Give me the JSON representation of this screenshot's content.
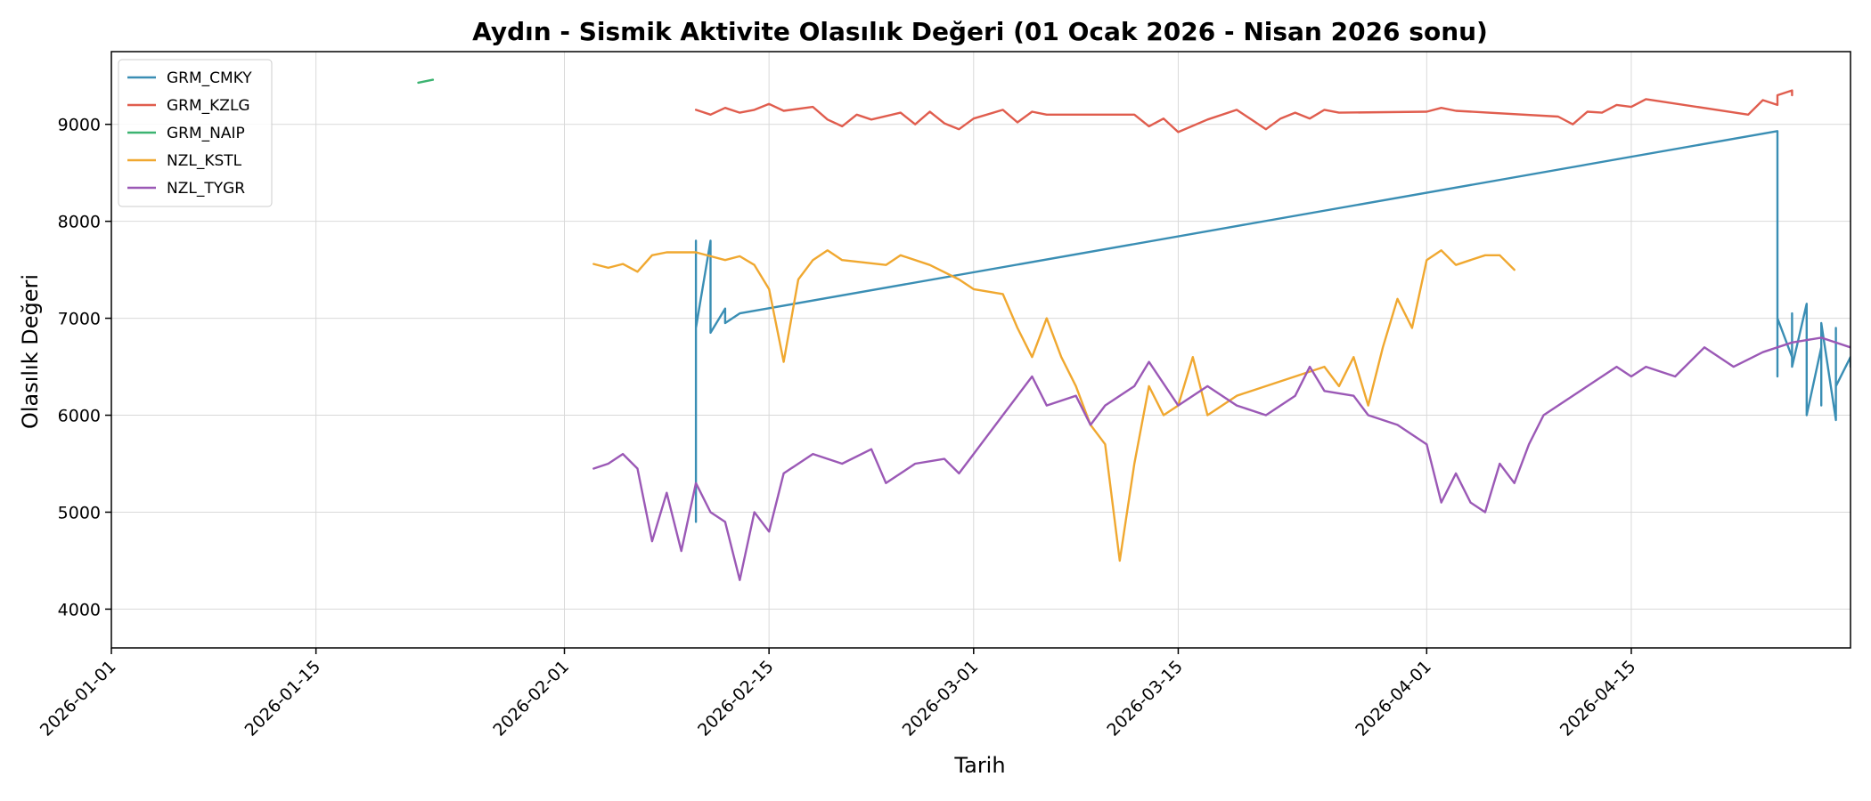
{
  "chart_data": {
    "type": "line",
    "title": "Aydın - Sismik Aktivite Olasılık Değeri (01 Ocak 2026 - Nisan 2026 sonu)",
    "xlabel": "Tarih",
    "ylabel": "Olasılık Değeri",
    "x_type": "date",
    "xlim": [
      "2026-01-01",
      "2026-04-30"
    ],
    "ylim": [
      3600,
      9750
    ],
    "x_ticks": [
      "2026-01-01",
      "2026-01-15",
      "2026-02-01",
      "2026-02-15",
      "2026-03-01",
      "2026-03-15",
      "2026-04-01",
      "2026-04-15"
    ],
    "y_ticks": [
      4000,
      5000,
      6000,
      7000,
      8000,
      9000
    ],
    "grid": true,
    "legend_position": "top-left",
    "series": [
      {
        "name": "GRM_CMKY",
        "color": "#3a8eb4",
        "points": [
          [
            "2026-02-10",
            4900
          ],
          [
            "2026-02-10",
            7800
          ],
          [
            "2026-02-10",
            7000
          ],
          [
            "2026-02-10",
            6900
          ],
          [
            "2026-02-11",
            7800
          ],
          [
            "2026-02-11",
            7000
          ],
          [
            "2026-02-11",
            6850
          ],
          [
            "2026-02-12",
            7100
          ],
          [
            "2026-02-12",
            6950
          ],
          [
            "2026-02-13",
            7050
          ],
          [
            "2026-04-25",
            8930
          ],
          [
            "2026-04-25",
            6400
          ],
          [
            "2026-04-25",
            7000
          ],
          [
            "2026-04-26",
            6600
          ],
          [
            "2026-04-26",
            7050
          ],
          [
            "2026-04-26",
            6500
          ],
          [
            "2026-04-27",
            7150
          ],
          [
            "2026-04-27",
            6200
          ],
          [
            "2026-04-27",
            7100
          ],
          [
            "2026-04-27",
            6000
          ],
          [
            "2026-04-28",
            6700
          ],
          [
            "2026-04-28",
            6100
          ],
          [
            "2026-04-28",
            6950
          ],
          [
            "2026-04-29",
            5950
          ],
          [
            "2026-04-29",
            6900
          ],
          [
            "2026-04-29",
            6300
          ],
          [
            "2026-04-30",
            6600
          ],
          [
            "2026-04-30",
            6500
          ]
        ]
      },
      {
        "name": "GRM_KZLG",
        "color": "#e05d4e",
        "points": [
          [
            "2026-02-10",
            9150
          ],
          [
            "2026-02-11",
            9100
          ],
          [
            "2026-02-12",
            9170
          ],
          [
            "2026-02-13",
            9120
          ],
          [
            "2026-02-14",
            9150
          ],
          [
            "2026-02-15",
            9210
          ],
          [
            "2026-02-16",
            9140
          ],
          [
            "2026-02-18",
            9180
          ],
          [
            "2026-02-19",
            9050
          ],
          [
            "2026-02-20",
            8980
          ],
          [
            "2026-02-21",
            9100
          ],
          [
            "2026-02-22",
            9050
          ],
          [
            "2026-02-24",
            9120
          ],
          [
            "2026-02-25",
            9000
          ],
          [
            "2026-02-26",
            9130
          ],
          [
            "2026-02-27",
            9010
          ],
          [
            "2026-02-28",
            8950
          ],
          [
            "2026-03-01",
            9060
          ],
          [
            "2026-03-03",
            9150
          ],
          [
            "2026-03-04",
            9020
          ],
          [
            "2026-03-05",
            9130
          ],
          [
            "2026-03-06",
            9100
          ],
          [
            "2026-03-12",
            9100
          ],
          [
            "2026-03-13",
            8980
          ],
          [
            "2026-03-14",
            9060
          ],
          [
            "2026-03-15",
            8920
          ],
          [
            "2026-03-17",
            9050
          ],
          [
            "2026-03-19",
            9150
          ],
          [
            "2026-03-20",
            9050
          ],
          [
            "2026-03-21",
            8950
          ],
          [
            "2026-03-22",
            9060
          ],
          [
            "2026-03-23",
            9120
          ],
          [
            "2026-03-24",
            9060
          ],
          [
            "2026-03-25",
            9150
          ],
          [
            "2026-03-26",
            9120
          ],
          [
            "2026-04-01",
            9130
          ],
          [
            "2026-04-02",
            9170
          ],
          [
            "2026-04-03",
            9140
          ],
          [
            "2026-04-10",
            9080
          ],
          [
            "2026-04-11",
            9000
          ],
          [
            "2026-04-12",
            9130
          ],
          [
            "2026-04-13",
            9120
          ],
          [
            "2026-04-14",
            9200
          ],
          [
            "2026-04-15",
            9180
          ],
          [
            "2026-04-16",
            9260
          ],
          [
            "2026-04-23",
            9100
          ],
          [
            "2026-04-24",
            9250
          ],
          [
            "2026-04-25",
            9200
          ],
          [
            "2026-04-25",
            9300
          ],
          [
            "2026-04-26",
            9350
          ],
          [
            "2026-04-26",
            9300
          ]
        ]
      },
      {
        "name": "GRM_NAIP",
        "color": "#3cb371",
        "points": [
          [
            "2026-01-22",
            9430
          ],
          [
            "2026-01-23",
            9460
          ]
        ]
      },
      {
        "name": "NZL_KSTL",
        "color": "#f0a830",
        "points": [
          [
            "2026-02-03",
            7560
          ],
          [
            "2026-02-04",
            7520
          ],
          [
            "2026-02-05",
            7560
          ],
          [
            "2026-02-06",
            7480
          ],
          [
            "2026-02-07",
            7650
          ],
          [
            "2026-02-08",
            7680
          ],
          [
            "2026-02-10",
            7680
          ],
          [
            "2026-02-11",
            7640
          ],
          [
            "2026-02-12",
            7600
          ],
          [
            "2026-02-13",
            7640
          ],
          [
            "2026-02-14",
            7550
          ],
          [
            "2026-02-15",
            7300
          ],
          [
            "2026-02-16",
            6550
          ],
          [
            "2026-02-17",
            7400
          ],
          [
            "2026-02-18",
            7600
          ],
          [
            "2026-02-19",
            7700
          ],
          [
            "2026-02-20",
            7600
          ],
          [
            "2026-02-23",
            7550
          ],
          [
            "2026-02-24",
            7650
          ],
          [
            "2026-02-26",
            7550
          ],
          [
            "2026-02-28",
            7400
          ],
          [
            "2026-03-01",
            7300
          ],
          [
            "2026-03-03",
            7250
          ],
          [
            "2026-03-04",
            6900
          ],
          [
            "2026-03-05",
            6600
          ],
          [
            "2026-03-06",
            7000
          ],
          [
            "2026-03-07",
            6600
          ],
          [
            "2026-03-08",
            6300
          ],
          [
            "2026-03-09",
            5900
          ],
          [
            "2026-03-10",
            5700
          ],
          [
            "2026-03-11",
            4500
          ],
          [
            "2026-03-12",
            5500
          ],
          [
            "2026-03-13",
            6300
          ],
          [
            "2026-03-14",
            6000
          ],
          [
            "2026-03-15",
            6100
          ],
          [
            "2026-03-16",
            6600
          ],
          [
            "2026-03-17",
            6000
          ],
          [
            "2026-03-19",
            6200
          ],
          [
            "2026-03-25",
            6500
          ],
          [
            "2026-03-26",
            6300
          ],
          [
            "2026-03-27",
            6600
          ],
          [
            "2026-03-28",
            6100
          ],
          [
            "2026-03-29",
            6700
          ],
          [
            "2026-03-30",
            7200
          ],
          [
            "2026-03-31",
            6900
          ],
          [
            "2026-04-01",
            7600
          ],
          [
            "2026-04-02",
            7700
          ],
          [
            "2026-04-03",
            7550
          ],
          [
            "2026-04-04",
            7600
          ],
          [
            "2026-04-05",
            7650
          ],
          [
            "2026-04-06",
            7650
          ],
          [
            "2026-04-07",
            7500
          ]
        ]
      },
      {
        "name": "NZL_TYGR",
        "color": "#9b59b6",
        "points": [
          [
            "2026-02-03",
            5450
          ],
          [
            "2026-02-04",
            5500
          ],
          [
            "2026-02-05",
            5600
          ],
          [
            "2026-02-06",
            5450
          ],
          [
            "2026-02-07",
            4700
          ],
          [
            "2026-02-08",
            5200
          ],
          [
            "2026-02-09",
            4600
          ],
          [
            "2026-02-10",
            5300
          ],
          [
            "2026-02-11",
            5000
          ],
          [
            "2026-02-12",
            4900
          ],
          [
            "2026-02-13",
            4300
          ],
          [
            "2026-02-14",
            5000
          ],
          [
            "2026-02-15",
            4800
          ],
          [
            "2026-02-16",
            5400
          ],
          [
            "2026-02-18",
            5600
          ],
          [
            "2026-02-20",
            5500
          ],
          [
            "2026-02-22",
            5650
          ],
          [
            "2026-02-23",
            5300
          ],
          [
            "2026-02-25",
            5500
          ],
          [
            "2026-02-27",
            5550
          ],
          [
            "2026-02-28",
            5400
          ],
          [
            "2026-03-01",
            5600
          ],
          [
            "2026-03-03",
            6000
          ],
          [
            "2026-03-05",
            6400
          ],
          [
            "2026-03-06",
            6100
          ],
          [
            "2026-03-08",
            6200
          ],
          [
            "2026-03-09",
            5900
          ],
          [
            "2026-03-10",
            6100
          ],
          [
            "2026-03-12",
            6300
          ],
          [
            "2026-03-13",
            6550
          ],
          [
            "2026-03-15",
            6100
          ],
          [
            "2026-03-17",
            6300
          ],
          [
            "2026-03-19",
            6100
          ],
          [
            "2026-03-21",
            6000
          ],
          [
            "2026-03-23",
            6200
          ],
          [
            "2026-03-24",
            6500
          ],
          [
            "2026-03-25",
            6250
          ],
          [
            "2026-03-27",
            6200
          ],
          [
            "2026-03-28",
            6000
          ],
          [
            "2026-03-30",
            5900
          ],
          [
            "2026-04-01",
            5700
          ],
          [
            "2026-04-02",
            5100
          ],
          [
            "2026-04-03",
            5400
          ],
          [
            "2026-04-04",
            5100
          ],
          [
            "2026-04-05",
            5000
          ],
          [
            "2026-04-06",
            5500
          ],
          [
            "2026-04-07",
            5300
          ],
          [
            "2026-04-08",
            5700
          ],
          [
            "2026-04-09",
            6000
          ],
          [
            "2026-04-10",
            6100
          ],
          [
            "2026-04-12",
            6300
          ],
          [
            "2026-04-14",
            6500
          ],
          [
            "2026-04-15",
            6400
          ],
          [
            "2026-04-16",
            6500
          ],
          [
            "2026-04-18",
            6400
          ],
          [
            "2026-04-20",
            6700
          ],
          [
            "2026-04-22",
            6500
          ],
          [
            "2026-04-24",
            6650
          ],
          [
            "2026-04-26",
            6750
          ],
          [
            "2026-04-28",
            6800
          ],
          [
            "2026-04-30",
            6700
          ]
        ]
      }
    ]
  }
}
